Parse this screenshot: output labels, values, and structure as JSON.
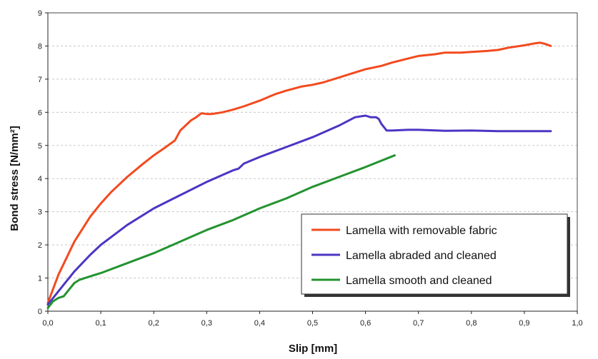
{
  "chart_data": {
    "type": "line",
    "xlabel": "Slip [mm]",
    "ylabel": "Bond stress  [N/mm²]",
    "xlim": [
      0,
      1.0
    ],
    "ylim": [
      0,
      9
    ],
    "xticks": [
      "0,0",
      "0,1",
      "0,2",
      "0,3",
      "0,4",
      "0,5",
      "0,6",
      "0,7",
      "0,8",
      "0,9",
      "1,0"
    ],
    "yticks": [
      "0",
      "1",
      "2",
      "3",
      "4",
      "5",
      "6",
      "7",
      "8",
      "9"
    ],
    "grid": "horizontal dashed",
    "legend_position": "bottom-right",
    "series": [
      {
        "name": "Lamella with removable fabric",
        "color": "#f24a1e",
        "x": [
          0,
          0.02,
          0.05,
          0.08,
          0.1,
          0.12,
          0.15,
          0.18,
          0.2,
          0.22,
          0.24,
          0.25,
          0.26,
          0.27,
          0.28,
          0.29,
          0.3,
          0.31,
          0.33,
          0.35,
          0.37,
          0.4,
          0.43,
          0.45,
          0.48,
          0.5,
          0.52,
          0.55,
          0.58,
          0.6,
          0.63,
          0.65,
          0.68,
          0.7,
          0.73,
          0.75,
          0.78,
          0.8,
          0.83,
          0.85,
          0.87,
          0.9,
          0.92,
          0.93,
          0.94,
          0.95
        ],
        "y": [
          0.25,
          1.1,
          2.1,
          2.85,
          3.25,
          3.6,
          4.05,
          4.45,
          4.7,
          4.92,
          5.15,
          5.45,
          5.6,
          5.75,
          5.85,
          5.97,
          5.95,
          5.95,
          6.0,
          6.08,
          6.18,
          6.35,
          6.55,
          6.65,
          6.78,
          6.83,
          6.9,
          7.05,
          7.2,
          7.3,
          7.4,
          7.5,
          7.62,
          7.7,
          7.75,
          7.8,
          7.8,
          7.82,
          7.85,
          7.88,
          7.95,
          8.02,
          8.08,
          8.1,
          8.06,
          8.0
        ]
      },
      {
        "name": "Lamella abraded and cleaned",
        "color": "#4b36c4",
        "x": [
          0,
          0.03,
          0.05,
          0.08,
          0.1,
          0.15,
          0.2,
          0.25,
          0.3,
          0.35,
          0.36,
          0.37,
          0.4,
          0.45,
          0.5,
          0.55,
          0.58,
          0.6,
          0.61,
          0.62,
          0.625,
          0.63,
          0.64,
          0.65,
          0.68,
          0.7,
          0.75,
          0.8,
          0.85,
          0.9,
          0.95
        ],
        "y": [
          0.2,
          0.8,
          1.2,
          1.7,
          2.0,
          2.6,
          3.1,
          3.5,
          3.9,
          4.25,
          4.3,
          4.45,
          4.65,
          4.95,
          5.25,
          5.6,
          5.85,
          5.9,
          5.85,
          5.85,
          5.8,
          5.65,
          5.45,
          5.45,
          5.47,
          5.47,
          5.44,
          5.45,
          5.43,
          5.43,
          5.43
        ]
      },
      {
        "name": "Lamella smooth and cleaned",
        "color": "#23932f",
        "x": [
          0,
          0.01,
          0.02,
          0.03,
          0.04,
          0.05,
          0.06,
          0.08,
          0.1,
          0.15,
          0.2,
          0.25,
          0.3,
          0.35,
          0.4,
          0.45,
          0.5,
          0.55,
          0.6,
          0.655
        ],
        "y": [
          0.1,
          0.3,
          0.4,
          0.45,
          0.65,
          0.85,
          0.95,
          1.05,
          1.15,
          1.45,
          1.75,
          2.1,
          2.45,
          2.75,
          3.1,
          3.4,
          3.75,
          4.05,
          4.35,
          4.7
        ]
      }
    ]
  }
}
